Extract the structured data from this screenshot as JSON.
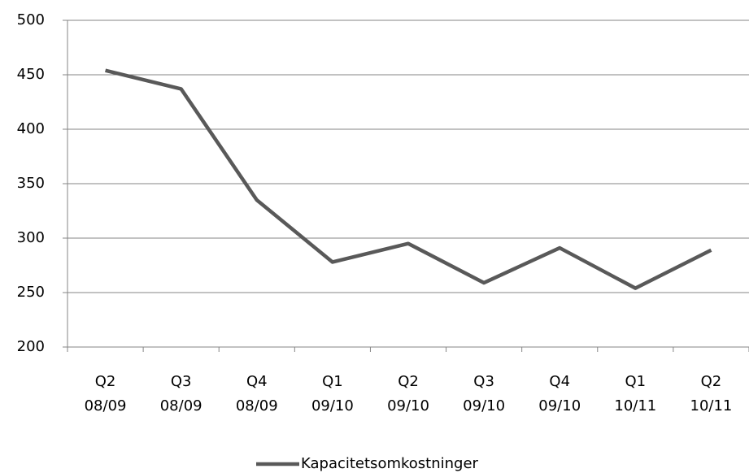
{
  "chart_data": {
    "type": "line",
    "categories": [
      "Q2\n08/09",
      "Q3\n08/09",
      "Q4\n08/09",
      "Q1\n09/10",
      "Q2\n09/10",
      "Q3\n09/10",
      "Q4\n09/10",
      "Q1\n10/11",
      "Q2\n10/11"
    ],
    "series": [
      {
        "name": "Kapacitetsomkostninger",
        "color": "#595959",
        "values": [
          454,
          437,
          335,
          278,
          295,
          259,
          291,
          254,
          289
        ]
      }
    ],
    "ylim": [
      200,
      500
    ],
    "yticks": [
      200,
      250,
      300,
      350,
      400,
      450,
      500
    ],
    "grid": true,
    "legend": "bottom"
  }
}
